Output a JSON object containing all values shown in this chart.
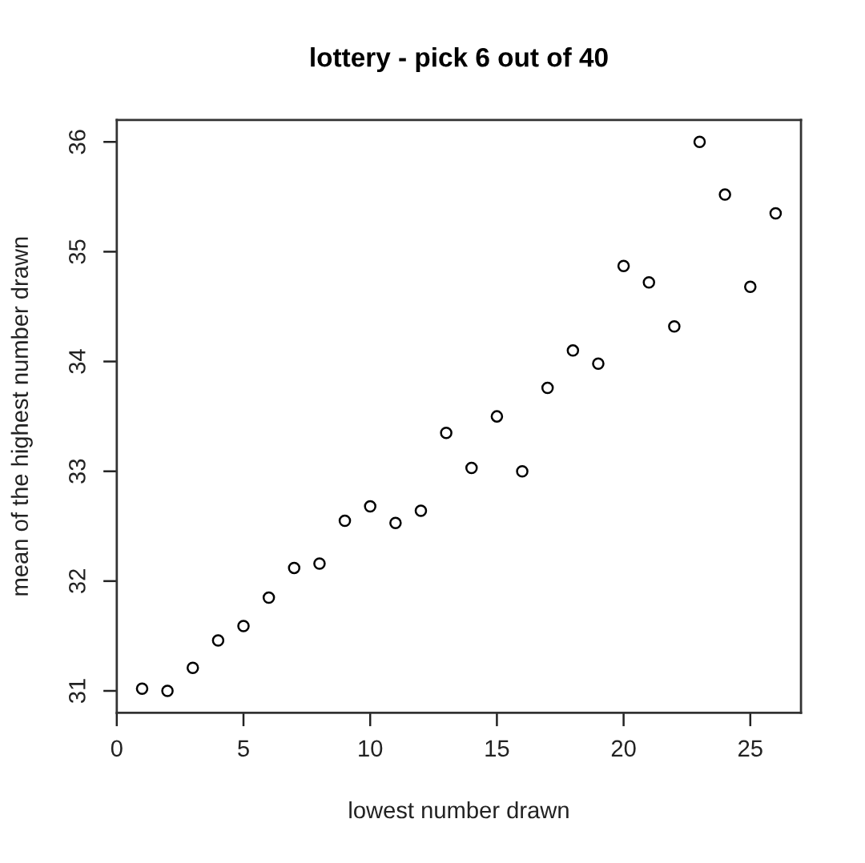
{
  "chart_data": {
    "type": "scatter",
    "title": "lottery - pick 6 out of 40",
    "xlabel": "lowest number drawn",
    "ylabel": "mean of the highest number drawn",
    "x": [
      1,
      2,
      3,
      4,
      5,
      6,
      7,
      8,
      9,
      10,
      11,
      12,
      13,
      14,
      15,
      16,
      17,
      18,
      19,
      20,
      21,
      22,
      23,
      24,
      25,
      26
    ],
    "series": [
      {
        "color": "#000000",
        "values": [
          31.02,
          31.0,
          31.21,
          31.46,
          31.59,
          31.85,
          32.12,
          32.16,
          32.55,
          32.68,
          32.53,
          32.64,
          33.35,
          33.03,
          33.5,
          33.0,
          33.76,
          34.1,
          33.98,
          34.87,
          34.72,
          34.32,
          36.0,
          35.52,
          34.68,
          35.35
        ]
      }
    ],
    "xlim": [
      0,
      27
    ],
    "ylim": [
      30.8,
      36.2
    ],
    "xticks": [
      0,
      5,
      10,
      15,
      20,
      25
    ],
    "yticks": [
      31,
      32,
      33,
      34,
      35,
      36
    ],
    "marker": "circle",
    "grid": false
  }
}
